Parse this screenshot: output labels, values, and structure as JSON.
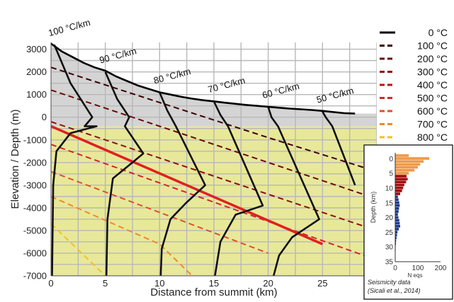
{
  "chart_data": [
    {
      "type": "line",
      "xlabel": "Distance from summit (km)",
      "ylabel": "Elevation / Depth (m)",
      "xlim": [
        0,
        30
      ],
      "ylim": [
        -7000,
        3300
      ],
      "x_ticks": [
        "0",
        "5",
        "10",
        "15",
        "20",
        "25"
      ],
      "y_ticks": [
        "3000",
        "2000",
        "1000",
        "0",
        "-1000",
        "-2000",
        "-3000",
        "-4000",
        "-5000",
        "-6000",
        "-7000"
      ],
      "grid": true,
      "legend_position": "top-right",
      "regions": [
        {
          "name": "edifice",
          "color": "#d4d4d4"
        },
        {
          "name": "basement",
          "color": "#e8e89a"
        }
      ],
      "topography": {
        "x": [
          0,
          1,
          2,
          3,
          4,
          5,
          6,
          7,
          8,
          9,
          10,
          11,
          12,
          13,
          14,
          15,
          16,
          17,
          18,
          19,
          20,
          21,
          22,
          23,
          24,
          25,
          26,
          27,
          28
        ],
        "y": [
          3250,
          2900,
          2650,
          2400,
          2200,
          2050,
          1800,
          1600,
          1400,
          1250,
          1100,
          1000,
          900,
          820,
          750,
          700,
          640,
          590,
          540,
          500,
          460,
          420,
          380,
          350,
          320,
          280,
          230,
          180,
          160
        ],
        "color": "#000000"
      },
      "isotherm_legend": [
        {
          "label": "0 °C",
          "color": "#000000"
        },
        {
          "label": "100 °C",
          "color": "#3d0000"
        },
        {
          "label": "200 °C",
          "color": "#6b0a0a"
        },
        {
          "label": "300 °C",
          "color": "#8e1010"
        },
        {
          "label": "400 °C",
          "color": "#b11616"
        },
        {
          "label": "500 °C",
          "color": "#d4262c"
        },
        {
          "label": "600 °C",
          "color": "#e0502a"
        },
        {
          "label": "700 °C",
          "color": "#ee8a2a"
        },
        {
          "label": "800 °C",
          "color": "#f2c21f"
        }
      ],
      "isotherms": [
        {
          "color": "#3d0000",
          "x": [
            0,
            10,
            20,
            30
          ],
          "y": [
            2200,
            650,
            -900,
            -2400
          ]
        },
        {
          "color": "#6b0a0a",
          "x": [
            0,
            10,
            20,
            30
          ],
          "y": [
            1200,
            -400,
            -2000,
            -3600
          ]
        },
        {
          "color": "#8e1010",
          "x": [
            0,
            10,
            20,
            30
          ],
          "y": [
            -200,
            -1800,
            -3400,
            -5000
          ]
        },
        {
          "color": "#d4262c",
          "x": [
            0,
            10,
            20,
            30
          ],
          "y": [
            -1200,
            -2900,
            -4600,
            -6300
          ]
        },
        {
          "color": "#e0502a",
          "x": [
            0,
            10,
            20
          ],
          "y": [
            -2400,
            -4200,
            -6000
          ]
        },
        {
          "color": "#ee8a2a",
          "x": [
            0,
            10,
            13
          ],
          "y": [
            -3500,
            -5600,
            -7000
          ]
        },
        {
          "color": "#f2c21f",
          "x": [
            0,
            5
          ],
          "y": [
            -4700,
            -7000
          ]
        }
      ],
      "magma_line": {
        "color": "#e02020",
        "x": [
          0,
          25
        ],
        "y": [
          -400,
          -5600
        ]
      },
      "geotherm_profiles": [
        {
          "label": "100 °C/km",
          "x": [
            0.3,
            1.8,
            3.8,
            3.1,
            4.2,
            1.8,
            0.5,
            0.2,
            0.1
          ],
          "y": [
            3200,
            1500,
            0,
            -400,
            -400,
            -700,
            -1500,
            -3000,
            -7000
          ]
        },
        {
          "label": "90 °C/km",
          "x": [
            5.0,
            6.1,
            7.2,
            6.8,
            8.5,
            7.5,
            5.7,
            5.2,
            5.1
          ],
          "y": [
            2000,
            800,
            0,
            -400,
            -1600,
            -2000,
            -2700,
            -4500,
            -7000
          ]
        },
        {
          "label": "80 °C/km",
          "x": [
            10.0,
            10.7,
            11.5,
            14.2,
            12.4,
            11.0,
            10.2,
            10.1
          ],
          "y": [
            1100,
            300,
            -400,
            -3000,
            -3800,
            -4500,
            -5800,
            -7000
          ]
        },
        {
          "label": "70 °C/km",
          "x": [
            15.0,
            15.6,
            16.3,
            19.5,
            17.0,
            15.6,
            15.1
          ],
          "y": [
            700,
            100,
            -400,
            -3900,
            -4300,
            -5500,
            -7000
          ]
        },
        {
          "label": "60 °C/km",
          "x": [
            20.0,
            20.3,
            20.9,
            24.7,
            22.2,
            21.0,
            20.5
          ],
          "y": [
            450,
            0,
            -400,
            -4500,
            -5300,
            -6100,
            -7000
          ]
        },
        {
          "label": "50 °C/km",
          "x": [
            25.0,
            25.3,
            25.9,
            28.0
          ],
          "y": [
            250,
            0,
            -400,
            -3000
          ]
        }
      ]
    },
    {
      "type": "bar",
      "orientation": "horizontal",
      "xlabel": "N eqs",
      "ylabel": "Depth (km)",
      "xlim": [
        0,
        200
      ],
      "ylim": [
        0,
        35
      ],
      "x_ticks": [
        "0",
        "100",
        "200"
      ],
      "y_ticks": [
        "0",
        "5",
        "10",
        "15",
        "20",
        "25",
        "30",
        "35"
      ],
      "caption": "Seismicity data (Sicali et al., 2014)",
      "bars": [
        {
          "depth": -1,
          "value": 60,
          "color": "#ee9a4a"
        },
        {
          "depth": 0,
          "value": 150,
          "color": "#ee9a4a"
        },
        {
          "depth": 1,
          "value": 125,
          "color": "#ee9a4a"
        },
        {
          "depth": 2,
          "value": 110,
          "color": "#ee9a4a"
        },
        {
          "depth": 3,
          "value": 100,
          "color": "#ee9a4a"
        },
        {
          "depth": 4,
          "value": 85,
          "color": "#ee9a4a"
        },
        {
          "depth": 5,
          "value": 60,
          "color": "#ee9a4a"
        },
        {
          "depth": 6,
          "value": 50,
          "color": "#a01010"
        },
        {
          "depth": 7,
          "value": 55,
          "color": "#a01010"
        },
        {
          "depth": 8,
          "value": 48,
          "color": "#a01010"
        },
        {
          "depth": 9,
          "value": 40,
          "color": "#a01010"
        },
        {
          "depth": 10,
          "value": 35,
          "color": "#a01010"
        },
        {
          "depth": 11,
          "value": 30,
          "color": "#a01010"
        },
        {
          "depth": 12,
          "value": 22,
          "color": "#a01010"
        },
        {
          "depth": 13,
          "value": 12,
          "color": "#1f3c8c"
        },
        {
          "depth": 14,
          "value": 15,
          "color": "#1f3c8c"
        },
        {
          "depth": 15,
          "value": 18,
          "color": "#1f3c8c"
        },
        {
          "depth": 16,
          "value": 20,
          "color": "#1f3c8c"
        },
        {
          "depth": 17,
          "value": 17,
          "color": "#1f3c8c"
        },
        {
          "depth": 18,
          "value": 15,
          "color": "#1f3c8c"
        },
        {
          "depth": 19,
          "value": 12,
          "color": "#1f3c8c"
        },
        {
          "depth": 20,
          "value": 14,
          "color": "#1f3c8c"
        },
        {
          "depth": 21,
          "value": 18,
          "color": "#1f3c8c"
        },
        {
          "depth": 22,
          "value": 20,
          "color": "#1f3c8c"
        },
        {
          "depth": 23,
          "value": 22,
          "color": "#1f3c8c"
        },
        {
          "depth": 24,
          "value": 16,
          "color": "#1f3c8c"
        },
        {
          "depth": 25,
          "value": 10,
          "color": "#1f3c8c"
        },
        {
          "depth": 26,
          "value": 8,
          "color": "#1f3c8c"
        },
        {
          "depth": 27,
          "value": 6,
          "color": "#1f3c8c"
        },
        {
          "depth": 28,
          "value": 4,
          "color": "#1f3c8c"
        },
        {
          "depth": 29,
          "value": 3,
          "color": "#1f3c8c"
        },
        {
          "depth": 30,
          "value": 2,
          "color": "#1f3c8c"
        },
        {
          "depth": 31,
          "value": 2,
          "color": "#1f3c8c"
        },
        {
          "depth": 32,
          "value": 1,
          "color": "#1f3c8c"
        }
      ]
    }
  ]
}
